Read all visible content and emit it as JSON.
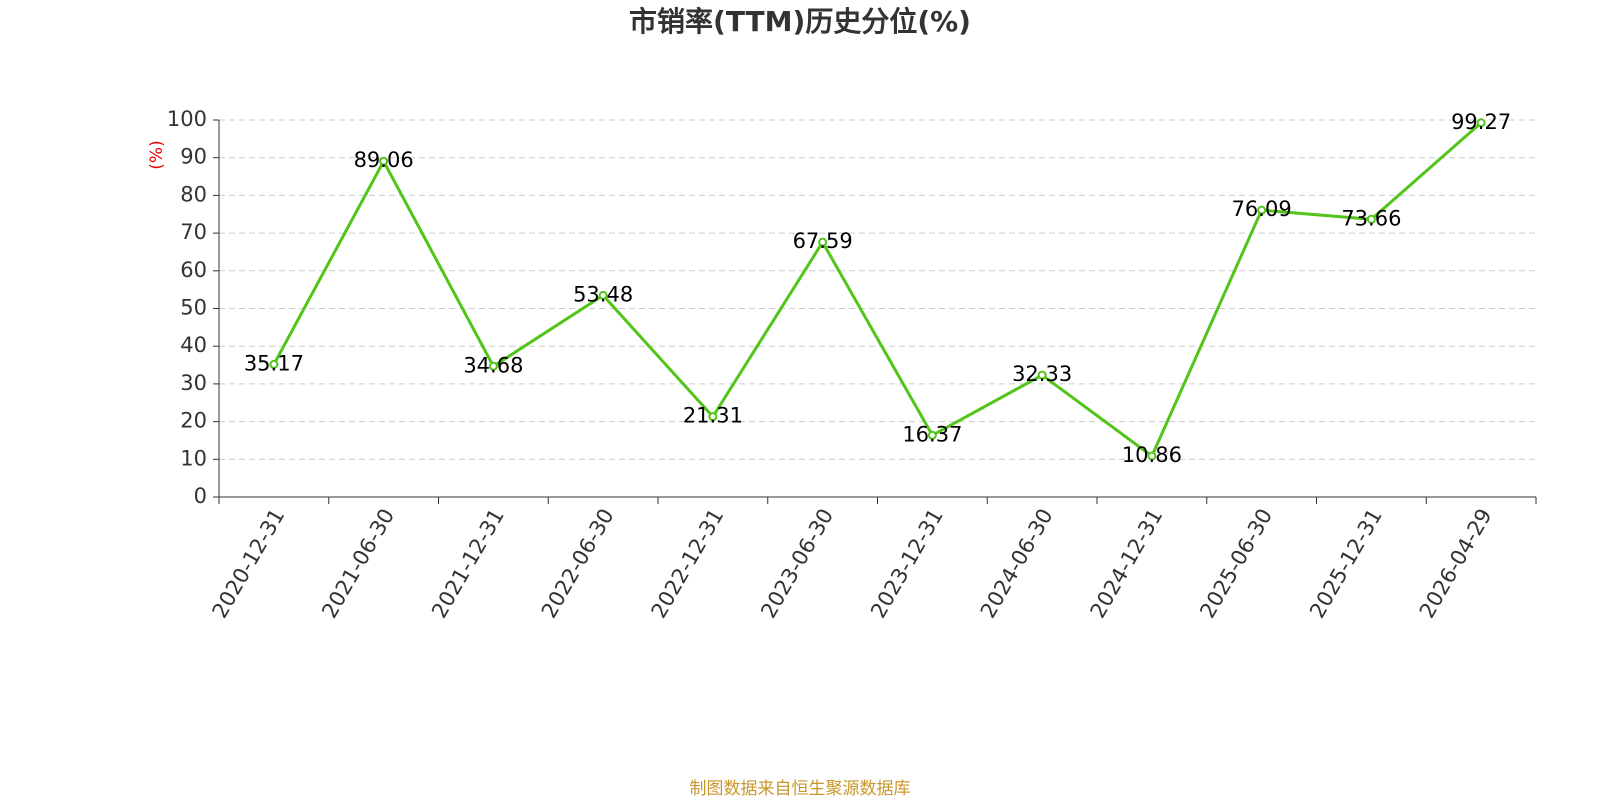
{
  "chart_data": {
    "type": "line",
    "title": "市销率(TTM)历史分位(%)",
    "y_label": "(%)",
    "source": "制图数据来自恒生聚源数据库",
    "categories": [
      "2020-12-31",
      "2021-06-30",
      "2021-12-31",
      "2022-06-30",
      "2022-12-31",
      "2023-06-30",
      "2023-12-31",
      "2024-06-30",
      "2024-12-31",
      "2025-06-30",
      "2025-12-31",
      "2026-04-29"
    ],
    "series": [
      {
        "name": "市销率(TTM)历史分位",
        "color": "#52c41a",
        "values": [
          35.17,
          89.06,
          34.68,
          53.48,
          21.31,
          67.59,
          16.37,
          32.33,
          10.86,
          76.09,
          73.66,
          99.27
        ]
      }
    ],
    "ylim": [
      0,
      100
    ],
    "yticks": [
      0,
      10,
      20,
      30,
      40,
      50,
      60,
      70,
      80,
      90,
      100
    ],
    "grid": true
  }
}
